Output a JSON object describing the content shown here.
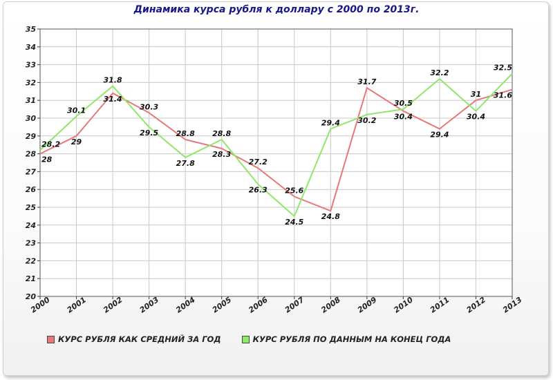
{
  "chart_data": {
    "type": "line",
    "title": "Динамика курса рубля к доллару с 2000 по 2013г.",
    "categories": [
      "2000",
      "2001",
      "2002",
      "2003",
      "2004",
      "2005",
      "2006",
      "2007",
      "2008",
      "2009",
      "2010",
      "2011",
      "2012",
      "2013"
    ],
    "ylim": [
      20,
      35
    ],
    "yticks": [
      20,
      21,
      22,
      23,
      24,
      25,
      26,
      27,
      28,
      29,
      30,
      31,
      32,
      33,
      34,
      35
    ],
    "grid": true,
    "legend_position": "bottom-left",
    "series": [
      {
        "name": "КУРС РУБЛЯ КАК СРЕДНИЙ ЗА ГОД",
        "color": "#e87878",
        "values": [
          28,
          29,
          31.4,
          30.3,
          28.8,
          28.3,
          27.2,
          25.6,
          24.8,
          31.7,
          30.4,
          29.4,
          31,
          31.6
        ],
        "labels": [
          "28",
          "29",
          "31.4",
          "30.3",
          "28.8",
          "28.3",
          "27.2",
          "25.6",
          "24.8",
          "31.7",
          "30.4",
          "29.4",
          "31",
          "31.6"
        ]
      },
      {
        "name": "КУРС РУБЛЯ ПО ДАННЫМ НА КОНЕЦ ГОДА",
        "color": "#8ee86a",
        "values": [
          28.2,
          30.1,
          31.8,
          29.5,
          27.8,
          28.8,
          26.3,
          24.5,
          29.4,
          30.2,
          30.5,
          32.2,
          30.4,
          32.5
        ],
        "labels": [
          "28.2",
          "30.1",
          "31.8",
          "29.5",
          "27.8",
          "28.8",
          "26.3",
          "24.5",
          "29.4",
          "30.2",
          "30.5",
          "32.2",
          "30.4",
          "32.5"
        ]
      }
    ]
  }
}
